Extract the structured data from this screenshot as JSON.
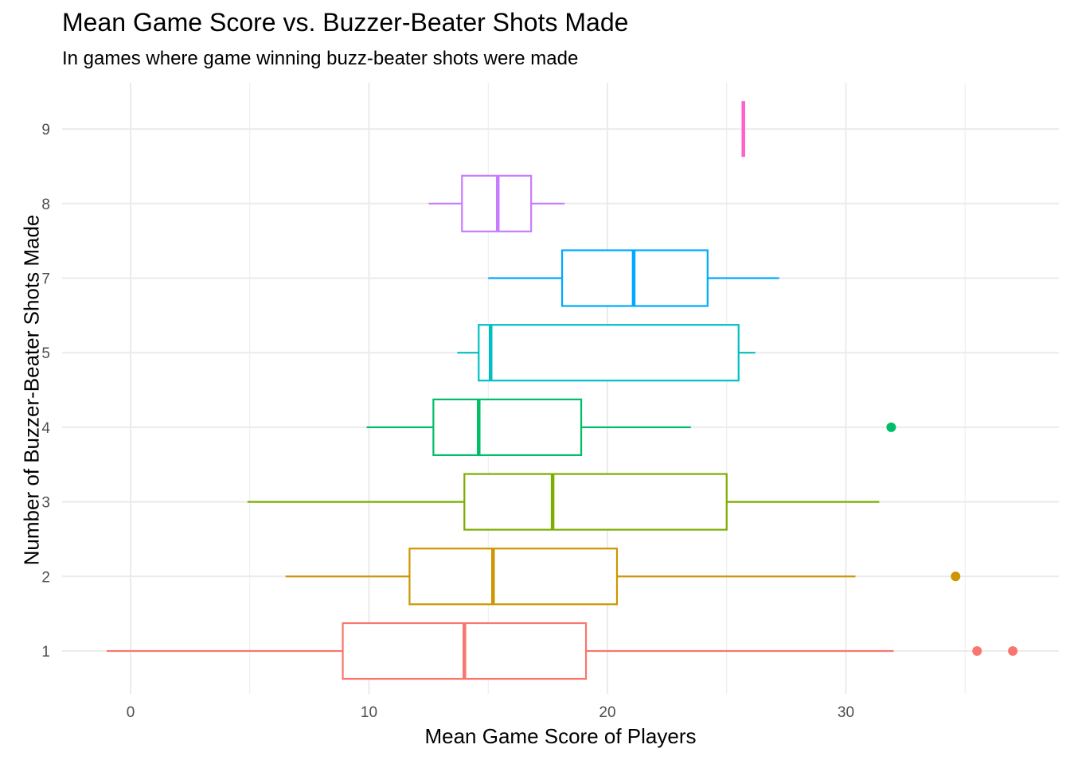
{
  "chart_data": {
    "type": "boxplot",
    "orientation": "horizontal",
    "title": "Mean Game Score vs. Buzzer-Beater Shots Made",
    "subtitle": "In games where game winning buzz-beater shots were made",
    "xlabel": "Mean Game Score of Players",
    "ylabel": "Number of Buzzer-Beater Shots Made",
    "xlim": [
      -3,
      39
    ],
    "x_ticks": [
      0,
      10,
      20,
      30
    ],
    "x_minor_gridlines": [
      5,
      15,
      25,
      35
    ],
    "categories": [
      "1",
      "2",
      "3",
      "4",
      "5",
      "7",
      "8",
      "9"
    ],
    "grid": true,
    "legend": "none",
    "boxes": [
      {
        "category": "1",
        "color": "#F8766D",
        "whisker_low": -1.0,
        "q1": 8.9,
        "median": 14.0,
        "q3": 19.1,
        "whisker_high": 32.0,
        "outliers": [
          35.5,
          37.0
        ]
      },
      {
        "category": "2",
        "color": "#CD9600",
        "whisker_low": 6.5,
        "q1": 11.7,
        "median": 15.2,
        "q3": 20.4,
        "whisker_high": 30.4,
        "outliers": [
          34.6
        ]
      },
      {
        "category": "3",
        "color": "#7CAE00",
        "whisker_low": 4.9,
        "q1": 14.0,
        "median": 17.7,
        "q3": 25.0,
        "whisker_high": 31.4,
        "outliers": []
      },
      {
        "category": "4",
        "color": "#00BE67",
        "whisker_low": 9.9,
        "q1": 12.7,
        "median": 14.6,
        "q3": 18.9,
        "whisker_high": 23.5,
        "outliers": [
          31.9
        ]
      },
      {
        "category": "5",
        "color": "#00BFC4",
        "whisker_low": 13.7,
        "q1": 14.6,
        "median": 15.1,
        "q3": 25.5,
        "whisker_high": 26.2,
        "outliers": []
      },
      {
        "category": "7",
        "color": "#00A9FF",
        "whisker_low": 15.0,
        "q1": 18.1,
        "median": 21.1,
        "q3": 24.2,
        "whisker_high": 27.2,
        "outliers": []
      },
      {
        "category": "8",
        "color": "#C77CFF",
        "whisker_low": 12.5,
        "q1": 13.9,
        "median": 15.4,
        "q3": 16.8,
        "whisker_high": 18.2,
        "outliers": []
      },
      {
        "category": "9",
        "color": "#FF61CC",
        "whisker_low": 25.7,
        "q1": 25.7,
        "median": 25.7,
        "q3": 25.7,
        "whisker_high": 25.7,
        "outliers": []
      }
    ]
  }
}
